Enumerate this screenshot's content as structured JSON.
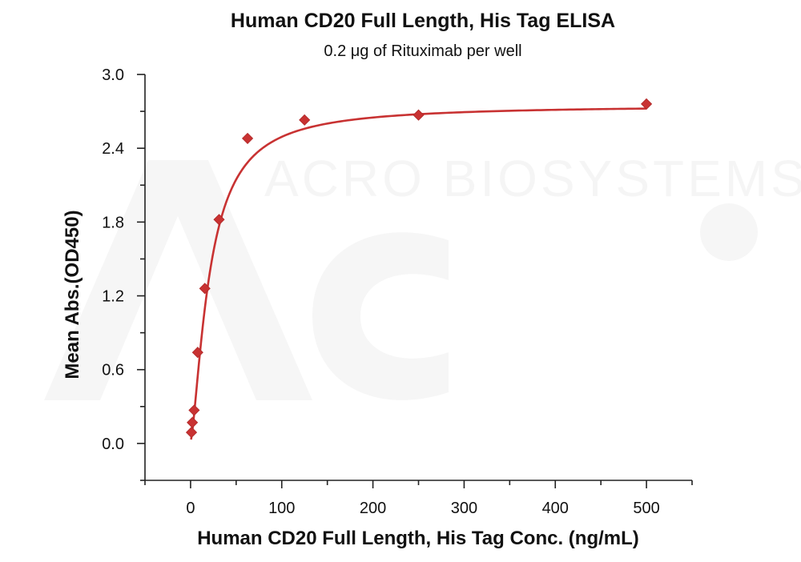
{
  "chart_data": {
    "type": "scatter",
    "title": "Human CD20 Full Length, His Tag ELISA",
    "subtitle": "0.2 μg of Rituximab per well",
    "xlabel": "Human CD20 Full Length, His Tag Conc. (ng/mL)",
    "ylabel": "Mean Abs.(OD450)",
    "xlim": [
      -50,
      550
    ],
    "ylim": [
      -0.3,
      3.0
    ],
    "xticks": [
      0,
      100,
      200,
      300,
      400,
      500
    ],
    "yticks": [
      0.0,
      0.6,
      1.2,
      1.8,
      2.4,
      3.0
    ],
    "xtick_labels": [
      "0",
      "100",
      "200",
      "300",
      "400",
      "500"
    ],
    "ytick_labels": [
      "0.0",
      "0.6",
      "1.2",
      "1.8",
      "2.4",
      "3.0"
    ],
    "grid": false,
    "marker": "diamond",
    "color": "#c83232",
    "series": [
      {
        "x": [
          0.98,
          1.95,
          3.91,
          7.81,
          15.63,
          31.25,
          62.5,
          125,
          250,
          500
        ],
        "y": [
          0.09,
          0.17,
          0.27,
          0.74,
          1.26,
          1.82,
          2.48,
          2.63,
          2.67,
          2.76
        ],
        "fit": "sigmoidal"
      }
    ],
    "watermark": "ACRO BIOSYSTEMS"
  }
}
